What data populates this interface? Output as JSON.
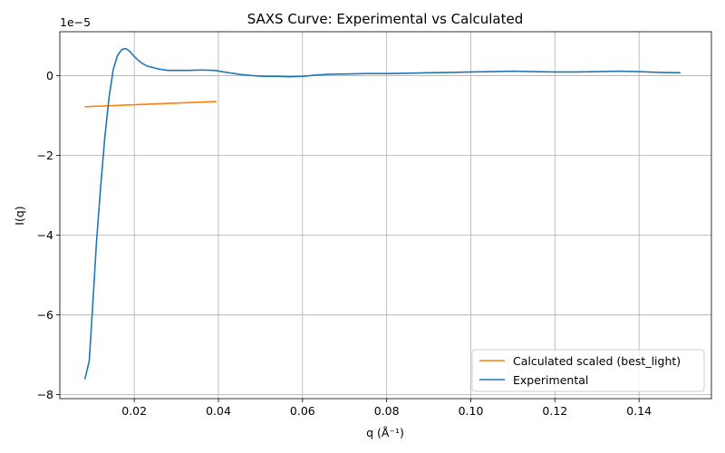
{
  "chart_data": {
    "type": "line",
    "title": "SAXS Curve: Experimental vs Calculated",
    "xlabel": "q (Å⁻¹)",
    "ylabel": "I(q)",
    "y_offset_label": "1e−5",
    "xlim": [
      0.0023,
      0.1572
    ],
    "ylim": [
      -8.1,
      1.1
    ],
    "y_scale_exponent": -5,
    "xticks": [
      0.02,
      0.04,
      0.06,
      0.08,
      0.1,
      0.12,
      0.14
    ],
    "xtick_labels": [
      "0.02",
      "0.04",
      "0.06",
      "0.08",
      "0.10",
      "0.12",
      "0.14"
    ],
    "yticks": [
      -8,
      -6,
      -4,
      -2,
      0
    ],
    "ytick_labels": [
      "−8",
      "−6",
      "−4",
      "−2",
      "0"
    ],
    "grid": true,
    "legend_position": "lower-right",
    "series": [
      {
        "name": "Calculated scaled (best_light)",
        "color": "#ff7f0e",
        "x": [
          0.0083,
          0.0394
        ],
        "y": [
          -0.78,
          -0.65
        ]
      },
      {
        "name": "Experimental",
        "color": "#1f77b4",
        "x": [
          0.0083,
          0.0093,
          0.0101,
          0.011,
          0.012,
          0.013,
          0.014,
          0.015,
          0.016,
          0.017,
          0.018,
          0.019,
          0.02,
          0.021,
          0.022,
          0.023,
          0.0245,
          0.026,
          0.028,
          0.03,
          0.033,
          0.036,
          0.039,
          0.042,
          0.045,
          0.048,
          0.051,
          0.054,
          0.057,
          0.06,
          0.063,
          0.066,
          0.07,
          0.075,
          0.08,
          0.085,
          0.09,
          0.095,
          0.1,
          0.105,
          0.11,
          0.115,
          0.12,
          0.125,
          0.13,
          0.135,
          0.14,
          0.145,
          0.1497
        ],
        "y": [
          -7.6,
          -7.15,
          -5.8,
          -4.2,
          -2.8,
          -1.55,
          -0.55,
          0.15,
          0.5,
          0.65,
          0.68,
          0.6,
          0.48,
          0.38,
          0.3,
          0.24,
          0.2,
          0.16,
          0.13,
          0.13,
          0.13,
          0.14,
          0.13,
          0.08,
          0.03,
          0.0,
          -0.02,
          -0.02,
          -0.03,
          -0.02,
          0.01,
          0.03,
          0.04,
          0.05,
          0.05,
          0.06,
          0.07,
          0.08,
          0.09,
          0.1,
          0.11,
          0.1,
          0.09,
          0.09,
          0.1,
          0.11,
          0.1,
          0.08,
          0.07
        ]
      }
    ]
  }
}
